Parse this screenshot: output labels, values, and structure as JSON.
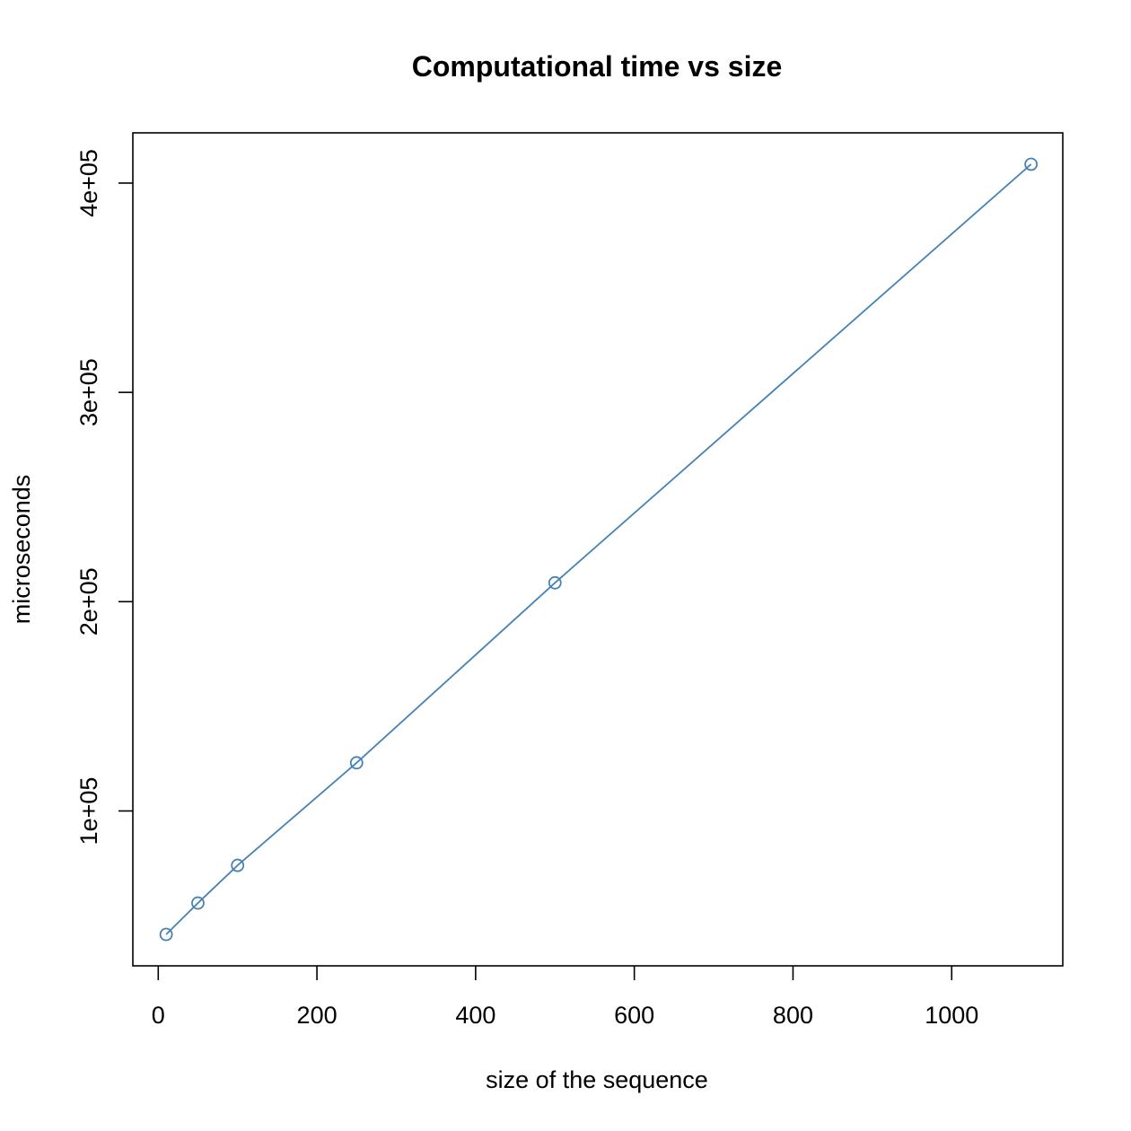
{
  "chart_data": {
    "type": "line",
    "title": "Computational time vs size",
    "xlabel": "size of the sequence",
    "ylabel": "microseconds",
    "xlim": [
      -32,
      1140
    ],
    "ylim": [
      26000,
      424000
    ],
    "grid": false,
    "x_ticks": [
      0,
      200,
      400,
      600,
      800,
      1000
    ],
    "x_tick_labels": [
      "0",
      "200",
      "400",
      "600",
      "800",
      "1000"
    ],
    "y_ticks": [
      100000,
      200000,
      300000,
      400000
    ],
    "y_tick_labels": [
      "1e+05",
      "2e+05",
      "3e+05",
      "4e+05"
    ],
    "series": [
      {
        "color": "#4682b4",
        "marker": "open-circle",
        "x": [
          10,
          50,
          100,
          250,
          500,
          1100
        ],
        "y": [
          41000,
          56000,
          74000,
          123000,
          209000,
          409000
        ]
      }
    ]
  }
}
